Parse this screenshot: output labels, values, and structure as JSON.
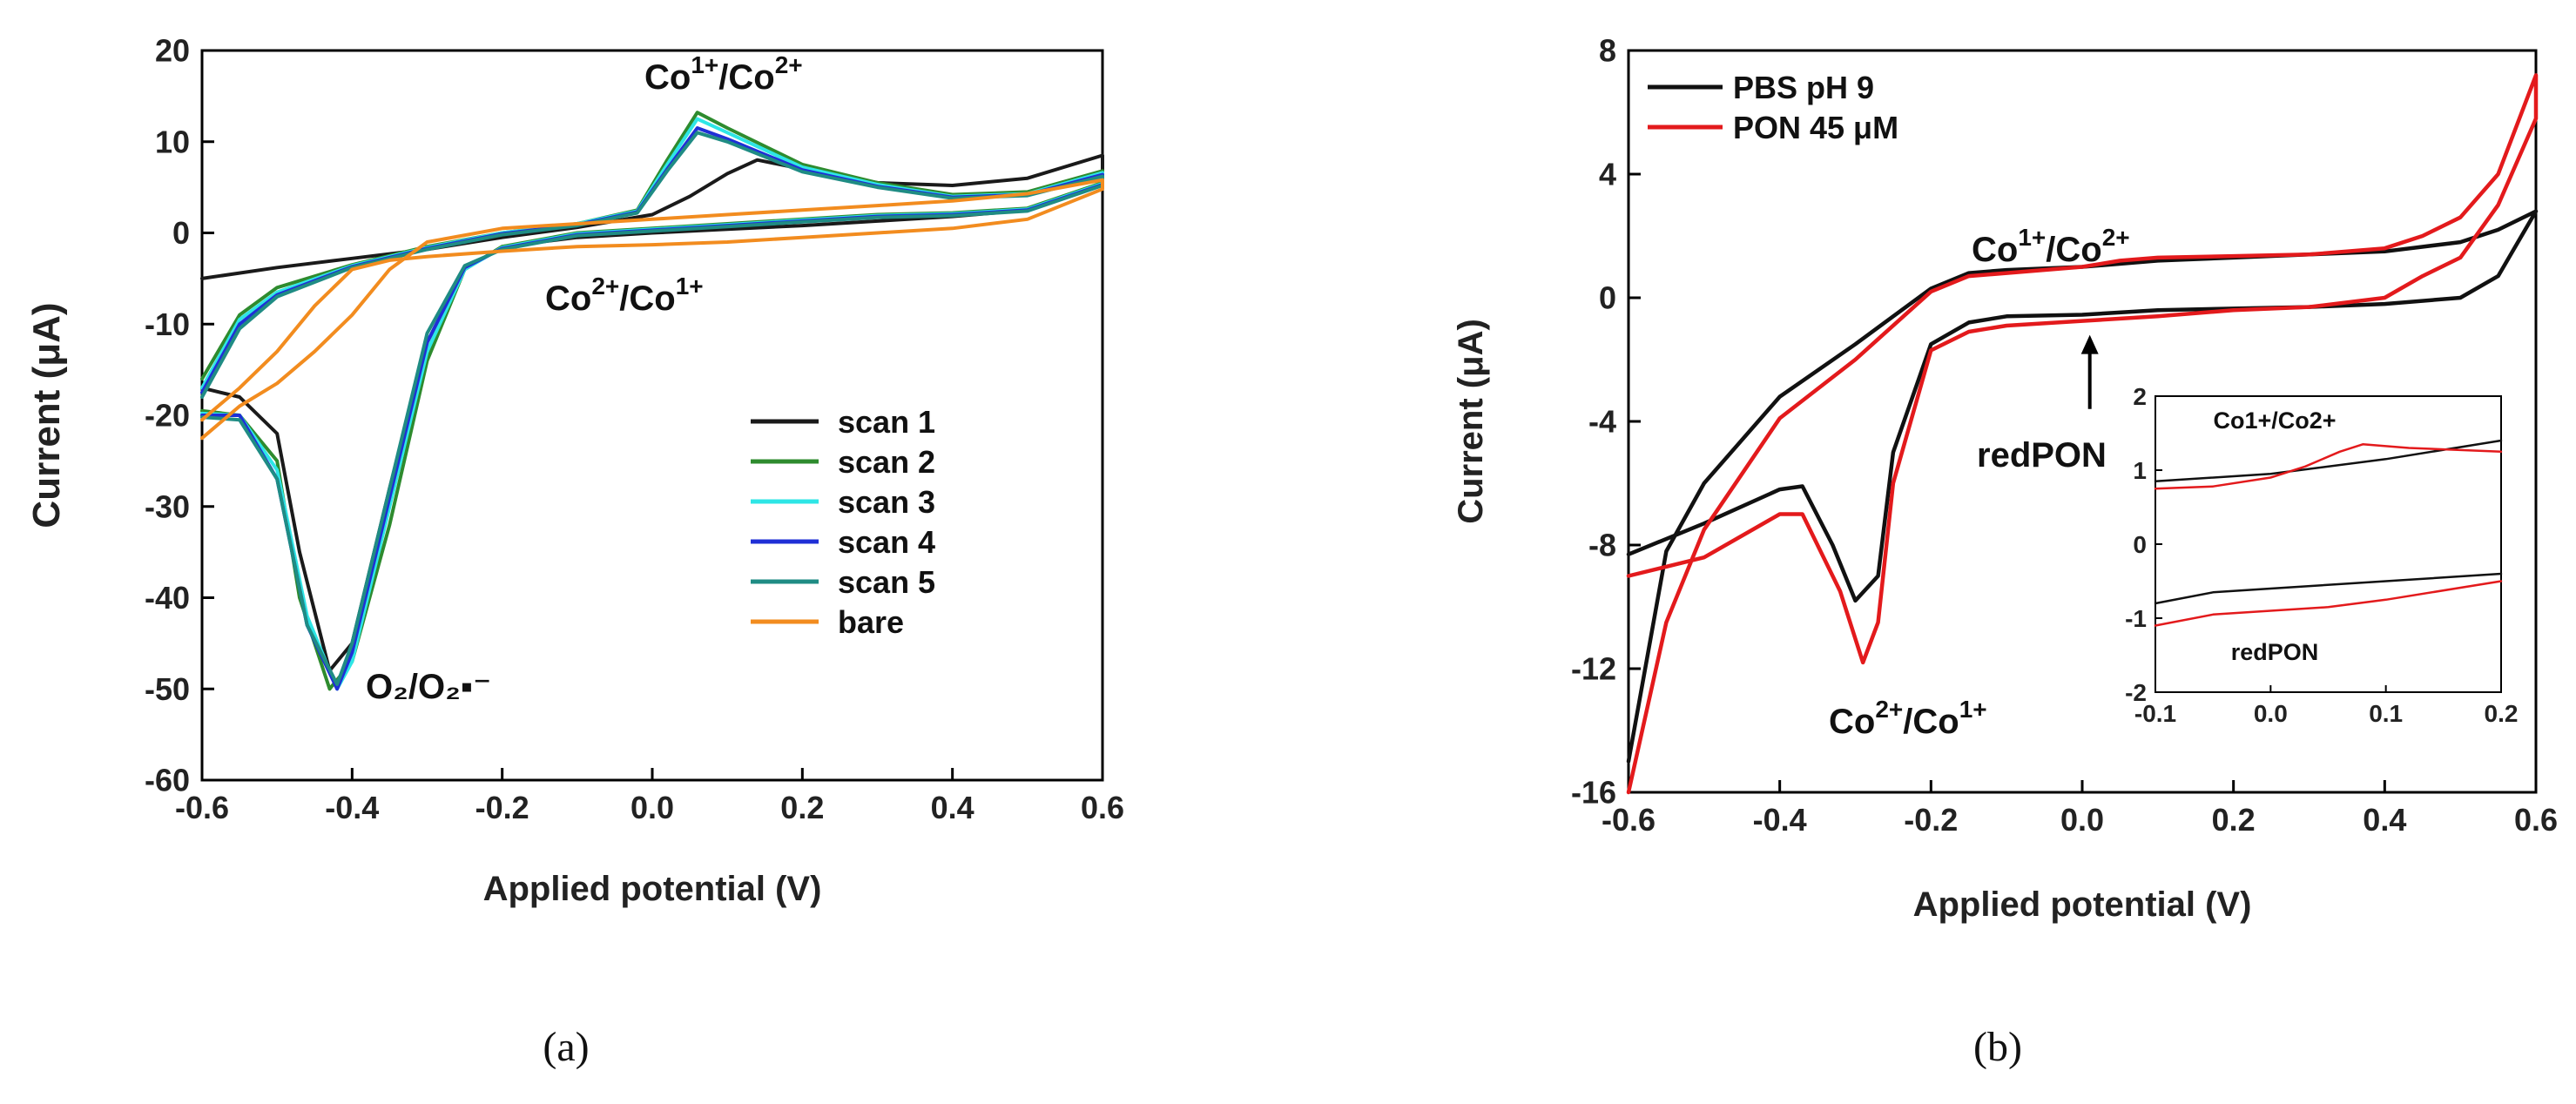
{
  "chart_data": [
    {
      "id": "a",
      "type": "line",
      "caption": "(a)",
      "xlabel": "Applied potential (V)",
      "ylabel": "Current (μA)",
      "xlim": [
        -0.6,
        0.6
      ],
      "ylim": [
        -60,
        20
      ],
      "xticks": [
        -0.6,
        -0.4,
        -0.2,
        0.0,
        0.2,
        0.4,
        0.6
      ],
      "xtick_labels": [
        "-0.6",
        "-0.4",
        "-0.2",
        "0.0",
        "0.2",
        "0.4",
        "0.6"
      ],
      "yticks": [
        -60,
        -50,
        -40,
        -30,
        -20,
        -10,
        0,
        10,
        20
      ],
      "ytick_labels": [
        "-60",
        "-50",
        "-40",
        "-30",
        "-20",
        "-10",
        "0",
        "10",
        "20"
      ],
      "legend_position": "right",
      "annotations": [
        {
          "base": "Co",
          "sup1": "1+",
          "sep": "/Co",
          "sup2": "2+",
          "x": -0.03,
          "y": 16.5
        },
        {
          "base": "Co",
          "sup1": "2+",
          "sep": "/Co",
          "sup2": "1+",
          "x": -0.29,
          "y": -8.5
        },
        {
          "text": "O₂/O₂▪⁻",
          "x": -0.43,
          "y": -57
        }
      ],
      "series": [
        {
          "name": "scan 1",
          "color": "#1a1a1a",
          "x": [
            -0.6,
            -0.5,
            -0.4,
            -0.3,
            -0.2,
            -0.1,
            0.0,
            0.05,
            0.1,
            0.14,
            0.2,
            0.3,
            0.4,
            0.5,
            0.6,
            0.6,
            0.5,
            0.4,
            0.3,
            0.2,
            0.1,
            0.0,
            -0.1,
            -0.2,
            -0.25,
            -0.3,
            -0.35,
            -0.4,
            -0.43,
            -0.47,
            -0.5,
            -0.55,
            -0.6
          ],
          "y": [
            -5,
            -3.8,
            -2.8,
            -1.8,
            -0.5,
            0.6,
            2.0,
            4.0,
            6.5,
            8.0,
            7.0,
            5.5,
            5.2,
            6.0,
            8.5,
            5.5,
            2.5,
            1.8,
            1.3,
            0.8,
            0.4,
            0.0,
            -0.5,
            -1.5,
            -4,
            -12,
            -28,
            -45,
            -48,
            -35,
            -22,
            -18,
            -17
          ]
        },
        {
          "name": "scan 2",
          "color": "#2e8b2e",
          "x": [
            -0.6,
            -0.55,
            -0.5,
            -0.4,
            -0.3,
            -0.2,
            -0.1,
            -0.02,
            0.02,
            0.06,
            0.1,
            0.2,
            0.3,
            0.4,
            0.5,
            0.6,
            0.6,
            0.5,
            0.4,
            0.3,
            0.2,
            0.1,
            0.0,
            -0.1,
            -0.2,
            -0.25,
            -0.3,
            -0.35,
            -0.4,
            -0.43,
            -0.47,
            -0.5,
            -0.55,
            -0.6
          ],
          "y": [
            -16,
            -9,
            -6,
            -3.5,
            -1.5,
            0.0,
            1.0,
            2.5,
            8.0,
            13.2,
            11.5,
            7.5,
            5.5,
            4.2,
            4.5,
            6.8,
            5.5,
            2.7,
            2.2,
            2.0,
            1.5,
            1.0,
            0.5,
            0.0,
            -1.5,
            -4,
            -14,
            -32,
            -47,
            -50,
            -40,
            -25,
            -20,
            -19.5
          ]
        },
        {
          "name": "scan 3",
          "color": "#2ee6e6",
          "x": [
            -0.6,
            -0.55,
            -0.5,
            -0.4,
            -0.3,
            -0.2,
            -0.1,
            -0.02,
            0.02,
            0.06,
            0.1,
            0.2,
            0.3,
            0.4,
            0.5,
            0.6,
            0.6,
            0.5,
            0.4,
            0.3,
            0.2,
            0.1,
            0.0,
            -0.1,
            -0.2,
            -0.25,
            -0.3,
            -0.35,
            -0.4,
            -0.42,
            -0.46,
            -0.5,
            -0.55,
            -0.6
          ],
          "y": [
            -17,
            -9.5,
            -6.5,
            -3.6,
            -1.6,
            0.0,
            1.0,
            2.4,
            7.5,
            12.5,
            11.0,
            7.2,
            5.3,
            4.0,
            4.3,
            6.6,
            5.4,
            2.6,
            2.1,
            1.9,
            1.4,
            0.9,
            0.4,
            -0.1,
            -1.6,
            -4,
            -13,
            -30,
            -47,
            -50,
            -42,
            -26,
            -20,
            -19.8
          ]
        },
        {
          "name": "scan 4",
          "color": "#1f2fd6",
          "x": [
            -0.6,
            -0.55,
            -0.5,
            -0.4,
            -0.3,
            -0.2,
            -0.1,
            -0.02,
            0.02,
            0.06,
            0.1,
            0.2,
            0.3,
            0.4,
            0.5,
            0.6,
            0.6,
            0.5,
            0.4,
            0.3,
            0.2,
            0.1,
            0.0,
            -0.1,
            -0.2,
            -0.25,
            -0.3,
            -0.35,
            -0.4,
            -0.42,
            -0.46,
            -0.5,
            -0.55,
            -0.6
          ],
          "y": [
            -17.5,
            -10,
            -6.8,
            -3.7,
            -1.7,
            -0.1,
            0.9,
            2.3,
            7.0,
            11.5,
            10.3,
            6.9,
            5.1,
            3.9,
            4.2,
            6.4,
            5.3,
            2.5,
            2.0,
            1.8,
            1.3,
            0.8,
            0.3,
            -0.2,
            -1.7,
            -3.8,
            -12,
            -29,
            -46,
            -50,
            -43,
            -27,
            -20,
            -20
          ]
        },
        {
          "name": "scan 5",
          "color": "#1f8c84",
          "x": [
            -0.6,
            -0.55,
            -0.5,
            -0.4,
            -0.3,
            -0.2,
            -0.1,
            -0.02,
            0.02,
            0.06,
            0.1,
            0.2,
            0.3,
            0.4,
            0.5,
            0.6,
            0.6,
            0.5,
            0.4,
            0.3,
            0.2,
            0.1,
            0.0,
            -0.1,
            -0.2,
            -0.25,
            -0.3,
            -0.35,
            -0.4,
            -0.42,
            -0.46,
            -0.5,
            -0.55,
            -0.6
          ],
          "y": [
            -18,
            -10.5,
            -7,
            -3.8,
            -1.8,
            -0.2,
            0.8,
            2.2,
            6.8,
            11.0,
            10.0,
            6.7,
            5.0,
            3.8,
            4.1,
            6.2,
            5.2,
            2.4,
            1.9,
            1.7,
            1.2,
            0.7,
            0.2,
            -0.3,
            -1.8,
            -3.6,
            -11,
            -28,
            -45,
            -49.5,
            -43,
            -27,
            -20.5,
            -20.2
          ]
        },
        {
          "name": "bare",
          "color": "#f28c1f",
          "x": [
            -0.6,
            -0.55,
            -0.5,
            -0.45,
            -0.4,
            -0.35,
            -0.3,
            -0.2,
            -0.1,
            0.0,
            0.1,
            0.2,
            0.3,
            0.4,
            0.5,
            0.6,
            0.6,
            0.5,
            0.4,
            0.3,
            0.2,
            0.1,
            0.0,
            -0.1,
            -0.2,
            -0.3,
            -0.35,
            -0.4,
            -0.45,
            -0.5,
            -0.55,
            -0.6
          ],
          "y": [
            -22.5,
            -19,
            -16.5,
            -13,
            -9,
            -4,
            -1,
            0.5,
            1.0,
            1.5,
            2.0,
            2.5,
            3.0,
            3.5,
            4.3,
            5.8,
            4.8,
            1.5,
            0.5,
            0.0,
            -0.5,
            -1.0,
            -1.3,
            -1.5,
            -2.0,
            -2.6,
            -3.0,
            -4.0,
            -8.0,
            -13.0,
            -17.0,
            -20.5
          ]
        }
      ]
    },
    {
      "id": "b",
      "type": "line",
      "caption": "(b)",
      "xlabel": "Applied potential (V)",
      "ylabel": "Current (μA)",
      "xlim": [
        -0.6,
        0.6
      ],
      "ylim": [
        -16,
        8
      ],
      "xticks": [
        -0.6,
        -0.4,
        -0.2,
        0.0,
        0.2,
        0.4,
        0.6
      ],
      "xtick_labels": [
        "-0.6",
        "-0.4",
        "-0.2",
        "0.0",
        "0.2",
        "0.4",
        "0.6"
      ],
      "yticks": [
        -16,
        -12,
        -8,
        -4,
        0,
        4,
        8
      ],
      "ytick_labels": [
        "-16",
        "-12",
        "-8",
        "-4",
        "0",
        "4",
        "8"
      ],
      "legend_position": "top-left",
      "annotations": [
        {
          "base": "Co",
          "sup1": "1+",
          "sep": "/Co",
          "sup2": "2+",
          "x": 0.2,
          "y": 2.7
        },
        {
          "base": "Co",
          "sup1": "2+",
          "sep": "/Co",
          "sup2": "1+",
          "x": -0.39,
          "y": -13.7
        },
        {
          "text": "redPON",
          "x": -0.12,
          "y": -5.6
        }
      ],
      "arrow": {
        "x": 0.01,
        "y_from": -3.6,
        "y_to": -1.2
      },
      "series": [
        {
          "name": "PBS pH 9",
          "color": "#111111",
          "x": [
            -0.6,
            -0.55,
            -0.5,
            -0.4,
            -0.3,
            -0.2,
            -0.15,
            -0.1,
            0.0,
            0.1,
            0.2,
            0.3,
            0.4,
            0.5,
            0.55,
            0.6,
            0.6,
            0.55,
            0.5,
            0.4,
            0.3,
            0.2,
            0.1,
            0.0,
            -0.1,
            -0.15,
            -0.2,
            -0.25,
            -0.27,
            -0.3,
            -0.33,
            -0.37,
            -0.4,
            -0.5,
            -0.6
          ],
          "y": [
            -15,
            -8.2,
            -6.0,
            -3.2,
            -1.5,
            0.3,
            0.8,
            0.9,
            1.0,
            1.2,
            1.3,
            1.4,
            1.5,
            1.8,
            2.2,
            2.8,
            2.8,
            0.7,
            0.0,
            -0.2,
            -0.3,
            -0.35,
            -0.4,
            -0.55,
            -0.6,
            -0.8,
            -1.5,
            -5.0,
            -9.0,
            -9.8,
            -8.0,
            -6.1,
            -6.2,
            -7.3,
            -8.3
          ]
        },
        {
          "name": "PON 45 μM",
          "color": "#e31a1c",
          "x": [
            -0.6,
            -0.55,
            -0.5,
            -0.4,
            -0.3,
            -0.2,
            -0.15,
            -0.1,
            0.0,
            0.05,
            0.1,
            0.2,
            0.3,
            0.4,
            0.45,
            0.5,
            0.55,
            0.6,
            0.6,
            0.55,
            0.5,
            0.45,
            0.4,
            0.3,
            0.2,
            0.1,
            0.0,
            -0.1,
            -0.15,
            -0.2,
            -0.25,
            -0.27,
            -0.29,
            -0.32,
            -0.37,
            -0.4,
            -0.5,
            -0.6
          ],
          "y": [
            -16,
            -10.5,
            -7.5,
            -3.9,
            -2.0,
            0.2,
            0.7,
            0.8,
            1.0,
            1.2,
            1.3,
            1.35,
            1.4,
            1.6,
            2.0,
            2.6,
            4.0,
            7.2,
            5.8,
            3.0,
            1.3,
            0.7,
            0.0,
            -0.3,
            -0.4,
            -0.6,
            -0.75,
            -0.9,
            -1.1,
            -1.7,
            -6.0,
            -10.5,
            -11.8,
            -9.5,
            -7.0,
            -7.0,
            -8.4,
            -9.0
          ]
        }
      ],
      "inset": {
        "xlim": [
          -0.1,
          0.2
        ],
        "ylim": [
          -2,
          2
        ],
        "xticks": [
          -0.1,
          0.0,
          0.1,
          0.2
        ],
        "xtick_labels": [
          "-0.1",
          "0.0",
          "0.1",
          "0.2"
        ],
        "yticks": [
          -2,
          -1,
          0,
          1,
          2
        ],
        "ytick_labels": [
          "-2",
          "-1",
          "0",
          "1",
          "2"
        ],
        "annotations": [
          {
            "text": "Co1+/Co2+",
            "x": 0.0,
            "y": 1.7
          },
          {
            "text": "redPON",
            "x": 0.0,
            "y": -1.6
          }
        ],
        "series": [
          {
            "name": "PBS pH 9",
            "color": "#111111",
            "x": [
              -0.1,
              0.0,
              0.1,
              0.2
            ],
            "y": [
              0.85,
              0.95,
              1.15,
              1.4
            ]
          },
          {
            "name": "PBS pH 9",
            "color": "#111111",
            "x": [
              -0.1,
              -0.05,
              0.0,
              0.1,
              0.2
            ],
            "y": [
              -0.8,
              -0.65,
              -0.6,
              -0.5,
              -0.4
            ]
          },
          {
            "name": "PON 45 μM",
            "color": "#e31a1c",
            "x": [
              -0.1,
              -0.05,
              0.0,
              0.03,
              0.06,
              0.08,
              0.12,
              0.2
            ],
            "y": [
              0.75,
              0.78,
              0.9,
              1.05,
              1.25,
              1.35,
              1.3,
              1.25
            ]
          },
          {
            "name": "PON 45 μM",
            "color": "#e31a1c",
            "x": [
              -0.1,
              -0.05,
              0.0,
              0.05,
              0.1,
              0.2
            ],
            "y": [
              -1.1,
              -0.95,
              -0.9,
              -0.85,
              -0.75,
              -0.5
            ]
          }
        ]
      }
    }
  ]
}
